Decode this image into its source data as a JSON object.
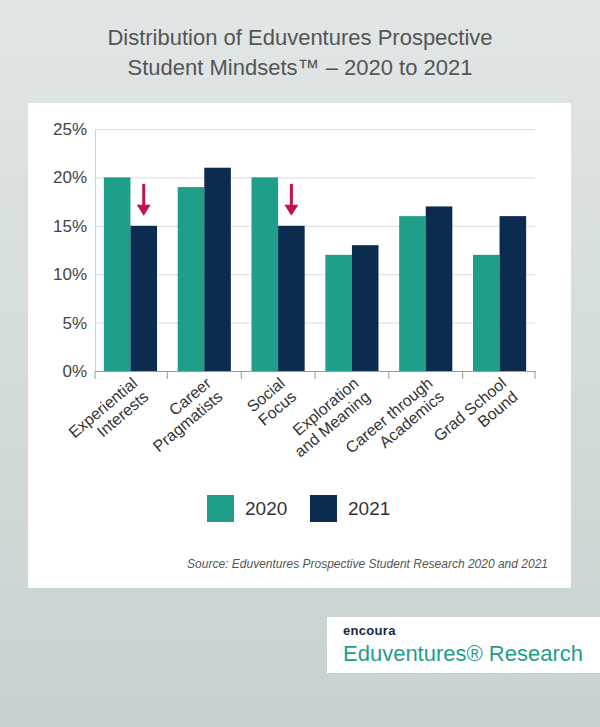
{
  "chart_data": {
    "type": "bar",
    "title": "Distribution of Eduventures Prospective Student Mindsets™ – 2020 to 2021",
    "categories": [
      "Experiential Interests",
      "Career Pragmatists",
      "Social Focus",
      "Exploration and Meaning",
      "Career through Academics",
      "Grad School Bound"
    ],
    "series": [
      {
        "name": "2020",
        "color": "#1f9e89",
        "values": [
          20,
          19,
          20,
          12,
          16,
          12
        ]
      },
      {
        "name": "2021",
        "color": "#0b2c4f",
        "values": [
          15,
          21,
          15,
          13,
          17,
          16
        ]
      }
    ],
    "ylim": [
      0,
      25
    ],
    "yticks": [
      {
        "value": 0,
        "label": "0%"
      },
      {
        "value": 5,
        "label": "5%"
      },
      {
        "value": 10,
        "label": "10%"
      },
      {
        "value": 15,
        "label": "15%"
      },
      {
        "value": 20,
        "label": "20%"
      },
      {
        "value": 25,
        "label": "25%"
      }
    ],
    "grid": true,
    "legend": "bottom",
    "annotations": [
      "Source: Eduventures Prospective Student Research 2020 and 2021",
      "encoura",
      "Eduventures® Research"
    ]
  }
}
